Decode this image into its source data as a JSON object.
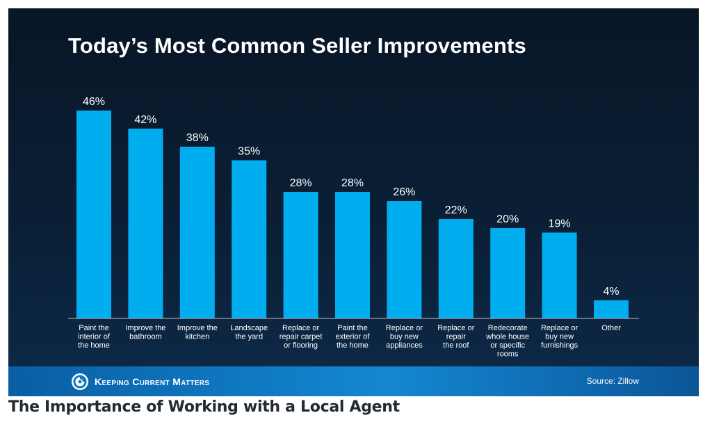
{
  "chart_data": {
    "type": "bar",
    "title": "Today’s Most Common Seller Improvements",
    "categories": [
      "Paint the interior of the home",
      "Improve the bathroom",
      "Improve the kitchen",
      "Landscape the yard",
      "Replace or repair carpet or flooring",
      "Paint the exterior of the home",
      "Replace or buy new appliances",
      "Replace or repair the roof",
      "Redecorate whole house or specific rooms",
      "Replace or buy new furnishings",
      "Other"
    ],
    "category_lines": [
      [
        "Paint the",
        "interior of",
        "the home"
      ],
      [
        "Improve the",
        "bathroom"
      ],
      [
        "Improve the",
        "kitchen"
      ],
      [
        "Landscape",
        "the yard"
      ],
      [
        "Replace or",
        "repair carpet",
        "or flooring"
      ],
      [
        "Paint the",
        "exterior of",
        "the home"
      ],
      [
        "Replace or",
        "buy new",
        "appliances"
      ],
      [
        "Replace or",
        "repair",
        "the roof"
      ],
      [
        "Redecorate",
        "whole house",
        "or specific",
        "rooms"
      ],
      [
        "Replace or",
        "buy new",
        "furnishings"
      ],
      [
        "Other"
      ]
    ],
    "values": [
      46,
      42,
      38,
      35,
      28,
      28,
      26,
      22,
      20,
      19,
      4
    ],
    "value_labels": [
      "46%",
      "42%",
      "38%",
      "35%",
      "28%",
      "28%",
      "26%",
      "22%",
      "20%",
      "19%",
      "4%"
    ],
    "unit": "%",
    "ylim": [
      0,
      50
    ],
    "grid": false,
    "legend": "none",
    "bar_color": "#00aef0"
  },
  "footer": {
    "brand": "Keeping Current Matters",
    "source": "Source: Zillow"
  },
  "caption": "The Importance of Working with a Local Agent",
  "colors": {
    "background": "#0a1f36",
    "footer_band": "#1487d1",
    "bar": "#00aef0",
    "text": "#ffffff"
  }
}
